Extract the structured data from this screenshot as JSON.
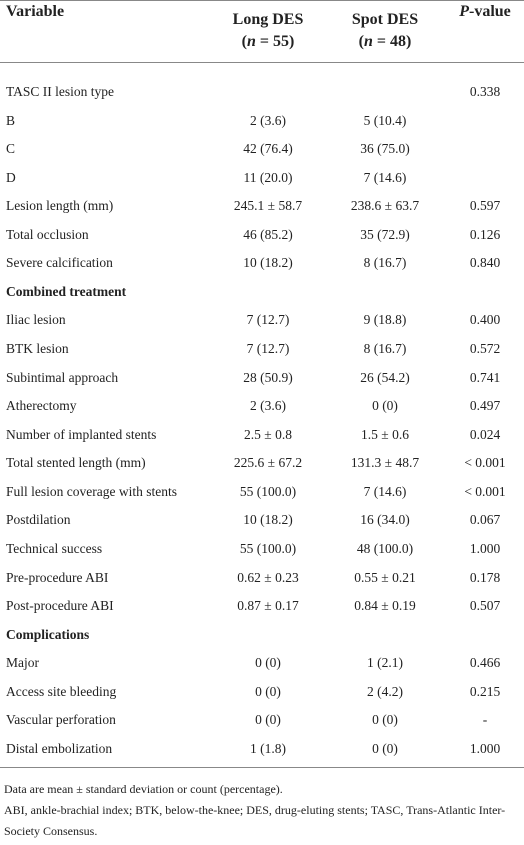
{
  "header": {
    "columns": [
      {
        "title": "Variable"
      },
      {
        "title": "Long DES",
        "subtitle_parts": [
          "(",
          "n",
          " = 55)"
        ]
      },
      {
        "title": "Spot DES",
        "subtitle_parts": [
          "(",
          "n",
          " = 48)"
        ]
      },
      {
        "title_parts": [
          "P",
          "-value"
        ]
      }
    ]
  },
  "table": {
    "rows": [
      [
        "TASC II lesion type",
        null,
        null,
        "0.338"
      ],
      [
        "B",
        "2 (3.6)",
        "5 (10.4)",
        null
      ],
      [
        "C",
        "42 (76.4)",
        "36 (75.0)",
        null
      ],
      [
        "D",
        "11 (20.0)",
        "7 (14.6)",
        null
      ],
      [
        "Lesion length (mm)",
        "245.1 ± 58.7",
        "238.6 ± 63.7",
        "0.597"
      ],
      [
        "Total occlusion",
        "46 (85.2)",
        "35 (72.9)",
        "0.126"
      ],
      [
        "Severe calcification",
        "10 (18.2)",
        "8 (16.7)",
        "0.840"
      ],
      [
        "Combined treatment"
      ],
      [
        "Iliac lesion",
        "7 (12.7)",
        "9 (18.8)",
        "0.400"
      ],
      [
        "BTK lesion",
        "7 (12.7)",
        "8 (16.7)",
        "0.572"
      ],
      [
        "Subintimal approach",
        "28 (50.9)",
        "26 (54.2)",
        "0.741"
      ],
      [
        "Atherectomy",
        "2 (3.6)",
        "0 (0)",
        "0.497"
      ],
      [
        "Number of implanted stents",
        "2.5 ± 0.8",
        "1.5 ± 0.6",
        "0.024"
      ],
      [
        "Total stented length (mm)",
        "225.6 ± 67.2",
        "131.3 ± 48.7",
        "< 0.001"
      ],
      [
        "Full lesion coverage with stents",
        "55 (100.0)",
        "7 (14.6)",
        "< 0.001"
      ],
      [
        "Postdilation",
        "10 (18.2)",
        "16 (34.0)",
        "0.067"
      ],
      [
        "Technical success",
        "55 (100.0)",
        "48 (100.0)",
        "1.000"
      ],
      [
        "Pre-procedure ABI",
        "0.62 ± 0.23",
        "0.55 ± 0.21",
        "0.178"
      ],
      [
        "Post-procedure ABI",
        "0.87 ± 0.17",
        "0.84 ± 0.19",
        "0.507"
      ],
      [
        "Complications"
      ],
      [
        "Major",
        "0 (0)",
        "1 (2.1)",
        "0.466"
      ],
      [
        "Access site bleeding",
        "0 (0)",
        "2 (4.2)",
        "0.215"
      ],
      [
        "Vascular perforation",
        "0 (0)",
        "0 (0)",
        "-"
      ],
      [
        "Distal embolization",
        "1 (1.8)",
        "0 (0)",
        "1.000"
      ]
    ]
  },
  "footnotes": [
    "Data are mean ± standard deviation or count (percentage).",
    "ABI, ankle-brachial index; BTK, below-the-knee; DES, drug-eluting stents; TASC, Trans-Atlantic Inter-Society Consensus."
  ]
}
